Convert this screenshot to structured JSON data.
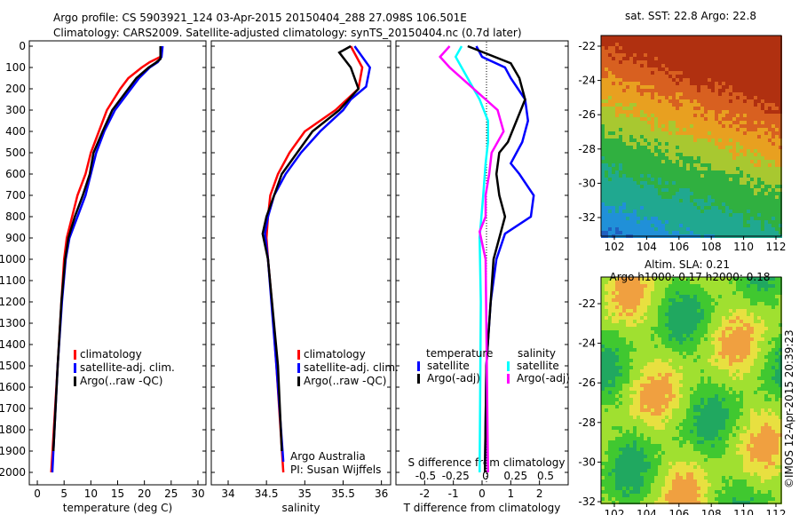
{
  "title_line1": "Argo profile: CS 5903921_124 03-Apr-2015 20150404_288 27.098S 106.501E",
  "title_line2": "Climatology: CARS2009. Satellite-adjusted climatology: synTS_20150404.nc (0.7d later)",
  "credit": "©IMOS 12-Apr-2015 20:39:23",
  "colors": {
    "climatology": "#ff0000",
    "satellite": "#0000ff",
    "argo": "#000000",
    "sal_sat": "#00ffff",
    "sal_argo": "#ff00ff"
  },
  "chart_data": [
    {
      "type": "line",
      "xlabel": "temperature (deg C)",
      "ylabel": "depth",
      "xlim": [
        -1.5,
        31.5
      ],
      "ylim": [
        2050,
        0
      ],
      "xticks": [
        0,
        5,
        10,
        15,
        20,
        25,
        30
      ],
      "yticks": [
        0,
        100,
        200,
        300,
        400,
        500,
        600,
        700,
        800,
        900,
        1000,
        1100,
        1200,
        1300,
        1400,
        1500,
        1600,
        1700,
        1800,
        1900,
        2000
      ],
      "legend": [
        "climatology",
        "satellite-adj. clim.",
        "Argo(..raw -QC)"
      ],
      "series": [
        {
          "name": "climatology",
          "color": "#ff0000",
          "depth": [
            0,
            50,
            75,
            100,
            150,
            200,
            300,
            400,
            500,
            600,
            700,
            800,
            900,
            1000,
            1200,
            1500,
            2000
          ],
          "values": [
            23.2,
            23,
            21,
            19.5,
            17,
            15.5,
            13,
            11.5,
            10,
            9,
            7.5,
            6.5,
            5.5,
            5,
            4.5,
            3.8,
            2.6
          ]
        },
        {
          "name": "satellite-adj. clim.",
          "color": "#0000ff",
          "depth": [
            0,
            50,
            75,
            100,
            150,
            200,
            300,
            400,
            500,
            600,
            700,
            800,
            900,
            1000,
            1200,
            1500,
            2000
          ],
          "values": [
            23.4,
            23.2,
            22.5,
            21,
            19,
            17.5,
            14.5,
            12.5,
            11,
            10,
            9,
            7.5,
            6,
            5.3,
            4.6,
            3.8,
            2.8
          ]
        },
        {
          "name": "Argo(..raw -QC)",
          "color": "#000000",
          "depth": [
            0,
            60,
            80,
            100,
            150,
            200,
            300,
            400,
            500,
            600,
            700,
            800,
            900,
            1000,
            1200,
            1500,
            1900
          ],
          "values": [
            23,
            23,
            22,
            20.8,
            18.5,
            17,
            14,
            12.2,
            10.5,
            9.8,
            8.5,
            7,
            5.8,
            5.2,
            4.5,
            3.8,
            3
          ]
        }
      ]
    },
    {
      "type": "line",
      "xlabel": "salinity",
      "xlim": [
        33.78,
        36.12
      ],
      "ylim": [
        2050,
        0
      ],
      "xticks": [
        34,
        34.5,
        35,
        35.5,
        36
      ],
      "legend": [
        "climatology",
        "satellite-adj. clim.",
        "Argo(..raw -QC)"
      ],
      "annotation": [
        "Argo Australia",
        "PI: Susan Wijffels"
      ],
      "series": [
        {
          "name": "climatology",
          "color": "#ff0000",
          "depth": [
            0,
            100,
            200,
            300,
            400,
            500,
            600,
            700,
            800,
            900,
            1000,
            1200,
            1500,
            2000
          ],
          "values": [
            35.6,
            35.75,
            35.7,
            35.4,
            35,
            34.8,
            34.65,
            34.55,
            34.52,
            34.5,
            34.52,
            34.57,
            34.63,
            34.72
          ]
        },
        {
          "name": "satellite-adj. clim.",
          "color": "#0000ff",
          "depth": [
            0,
            100,
            190,
            250,
            300,
            400,
            500,
            600,
            700,
            800,
            880,
            1000,
            1500,
            1950
          ],
          "values": [
            35.65,
            35.85,
            35.8,
            35.6,
            35.5,
            35.2,
            34.95,
            34.75,
            34.6,
            34.52,
            34.48,
            34.52,
            34.63,
            34.72
          ]
        },
        {
          "name": "Argo(..raw -QC)",
          "color": "#000000",
          "depth": [
            0,
            30,
            100,
            200,
            300,
            400,
            500,
            600,
            700,
            800,
            880,
            1000,
            1500,
            1900
          ],
          "values": [
            35.6,
            35.45,
            35.6,
            35.7,
            35.45,
            35.1,
            34.9,
            34.7,
            34.6,
            34.5,
            34.45,
            34.52,
            34.65,
            34.7
          ]
        }
      ]
    },
    {
      "type": "line",
      "xlabel": "T difference from climatology",
      "x2label": "S difference from climatology",
      "xlim": [
        -3,
        3
      ],
      "ylim": [
        2050,
        0
      ],
      "xticks": [
        -2,
        -1,
        0,
        1,
        2
      ],
      "x2ticks": [
        -0.5,
        -0.25,
        0,
        0.25,
        0.5
      ],
      "legend_titles": [
        "temperature",
        "salinity"
      ],
      "legend": [
        "satellite",
        "Argo(-adj)",
        "satellite",
        "Argo(-adj)"
      ],
      "series": [
        {
          "name": "T satellite",
          "axis": "T",
          "color": "#0000ff",
          "depth": [
            0,
            50,
            100,
            150,
            250,
            350,
            450,
            550,
            600,
            700,
            800,
            880,
            1000,
            1200,
            1500,
            2000
          ],
          "values": [
            -0.2,
            0,
            0.8,
            1,
            1.5,
            1.6,
            1.4,
            1,
            1.3,
            1.8,
            1.7,
            0.8,
            0.5,
            0.3,
            0.15,
            0.1
          ]
        },
        {
          "name": "T Argo(-adj)",
          "axis": "T",
          "color": "#000000",
          "depth": [
            0,
            80,
            150,
            250,
            350,
            450,
            500,
            600,
            700,
            800,
            900,
            1000,
            1200,
            1500,
            2000
          ],
          "values": [
            -0.5,
            1,
            1.3,
            1.5,
            1.2,
            0.9,
            0.6,
            0.5,
            0.6,
            0.8,
            0.6,
            0.4,
            0.3,
            0.15,
            0.1
          ]
        },
        {
          "name": "S satellite",
          "axis": "S",
          "color": "#00ffff",
          "depth": [
            0,
            50,
            100,
            150,
            250,
            350,
            450,
            550,
            700,
            900,
            1200,
            2000
          ],
          "values": [
            -0.2,
            -0.25,
            -0.2,
            -0.15,
            -0.05,
            0.02,
            0.02,
            0,
            -0.02,
            -0.05,
            -0.04,
            -0.05
          ]
        },
        {
          "name": "S Argo(-adj)",
          "axis": "S",
          "color": "#ff00ff",
          "depth": [
            0,
            50,
            100,
            200,
            300,
            400,
            500,
            600,
            700,
            800,
            870,
            1000,
            1500,
            2000
          ],
          "values": [
            -0.3,
            -0.38,
            -0.3,
            -0.1,
            0.1,
            0.15,
            0.05,
            0.03,
            0,
            0,
            -0.05,
            0,
            0.01,
            0.02
          ]
        }
      ]
    },
    {
      "type": "heatmap",
      "title": "sat. SST: 22.8 Argo: 22.8",
      "xticks": [
        102,
        104,
        106,
        108,
        110,
        112
      ],
      "yticks": [
        -22,
        -24,
        -26,
        -28,
        -30,
        -32
      ]
    },
    {
      "type": "heatmap",
      "title": [
        "Altim. SLA: 0.21",
        "Argo h1000: 0.17 h2000: 0.18"
      ],
      "xticks": [
        102,
        104,
        106,
        108,
        110,
        112
      ],
      "yticks": [
        -22,
        -24,
        -26,
        -28,
        -30,
        -32
      ]
    }
  ]
}
